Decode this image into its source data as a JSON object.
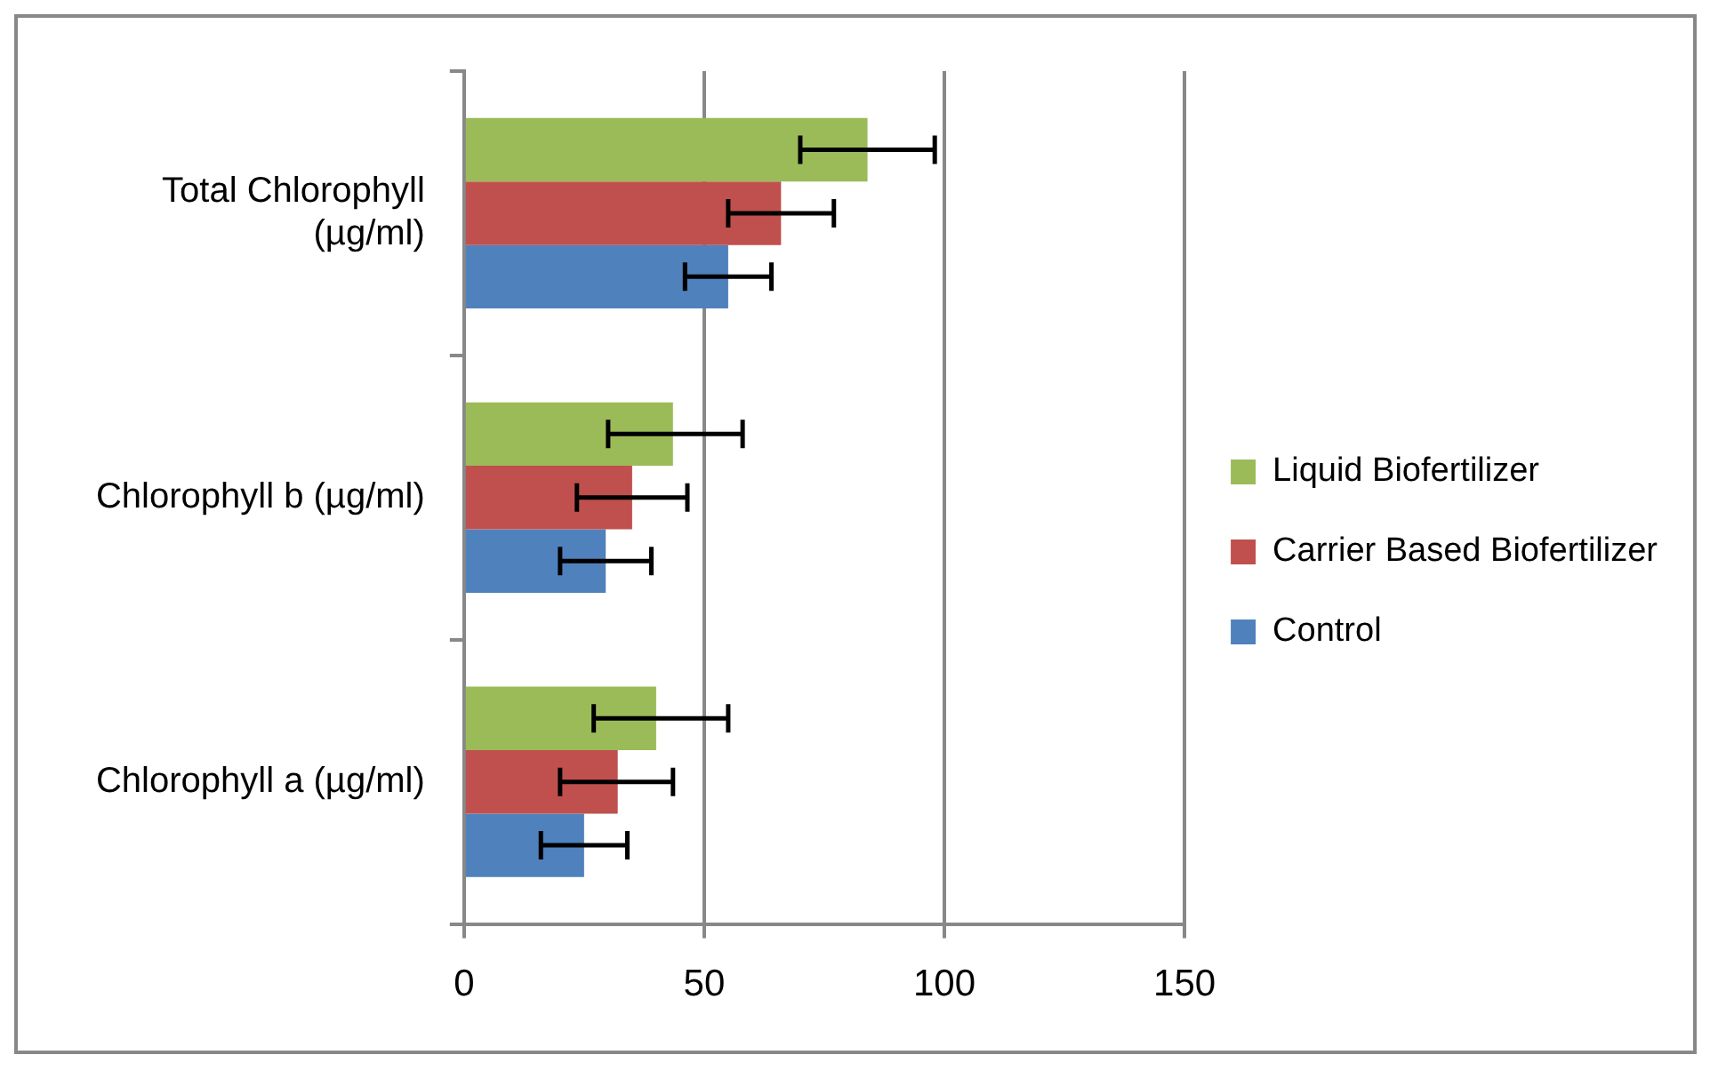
{
  "chart_data": {
    "type": "bar",
    "orientation": "horizontal",
    "categories": [
      "Total Chlorophyll (µg/ml)",
      "Chlorophyll b (µg/ml)",
      "Chlorophyll a (µg/ml)"
    ],
    "series": [
      {
        "name": "Liquid Biofertilizer",
        "color": "#9bbb59",
        "values": [
          84,
          43.5,
          40
        ],
        "errors": [
          [
            70,
            98
          ],
          [
            30,
            58
          ],
          [
            27,
            55
          ]
        ]
      },
      {
        "name": "Carrier Based Biofertilizer",
        "color": "#c0504d",
        "values": [
          66,
          35,
          32
        ],
        "errors": [
          [
            55,
            77
          ],
          [
            23.5,
            46.5
          ],
          [
            20,
            43.5
          ]
        ]
      },
      {
        "name": "Control",
        "color": "#4f81bd",
        "values": [
          55,
          29.5,
          25
        ],
        "errors": [
          [
            46,
            64
          ],
          [
            20,
            39
          ],
          [
            16,
            34
          ]
        ]
      }
    ],
    "xlim": [
      0,
      150
    ],
    "xticks": [
      0,
      50,
      100,
      150
    ],
    "grid": "x",
    "legend": "right"
  }
}
